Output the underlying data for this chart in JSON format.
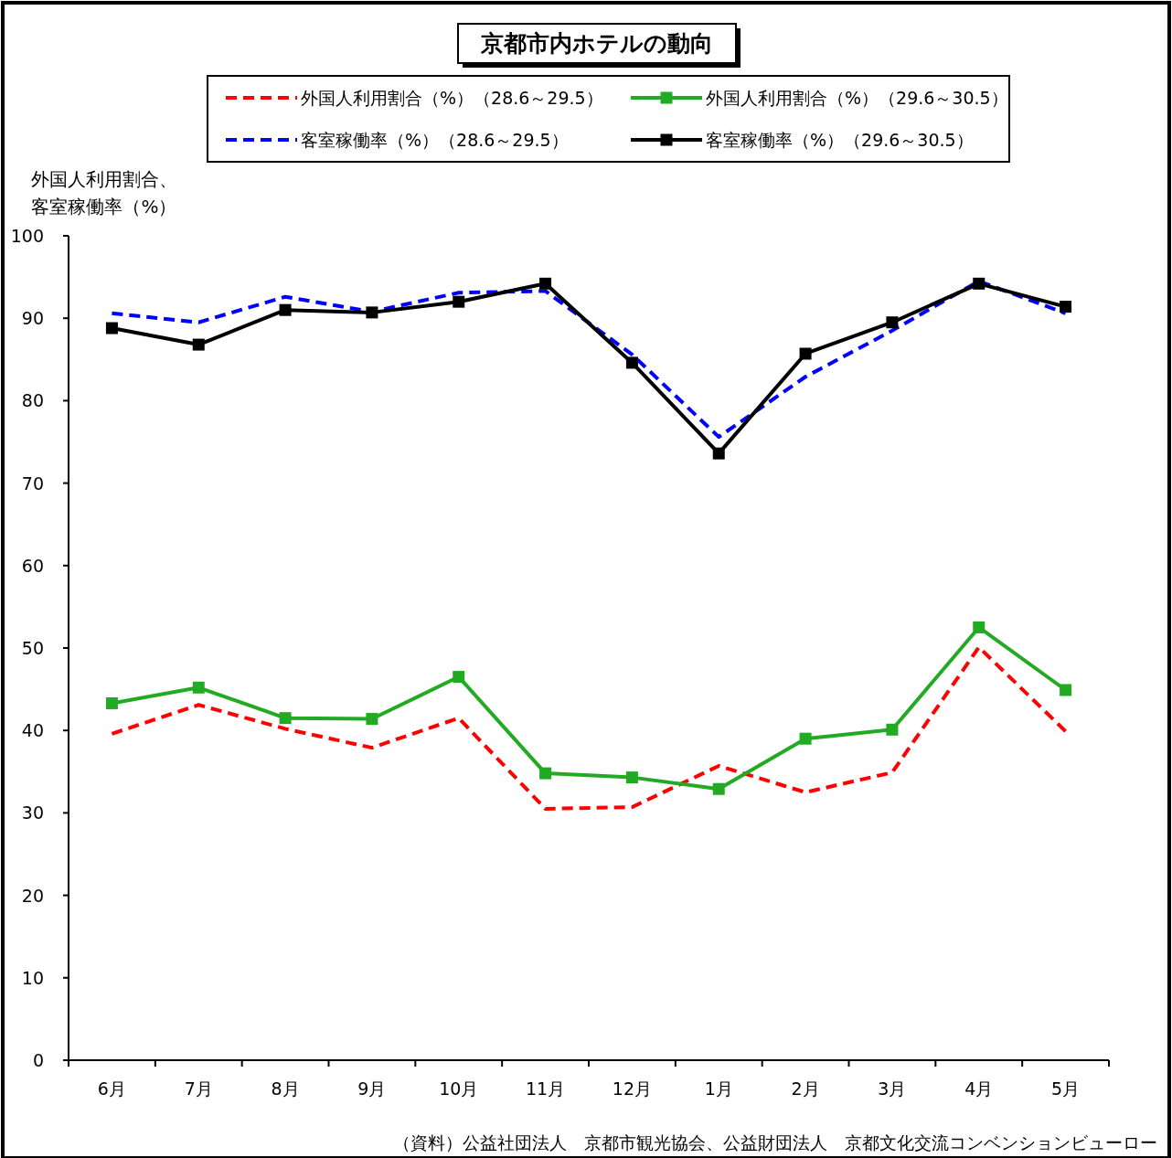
{
  "chart_data": {
    "type": "line",
    "title": "京都市内ホテルの動向",
    "ylabel": "外国人利用割合、客室稼働率（%）",
    "categories": [
      "6月",
      "7月",
      "8月",
      "9月",
      "10月",
      "11月",
      "12月",
      "1月",
      "2月",
      "3月",
      "4月",
      "5月"
    ],
    "series": [
      {
        "name": "外国人利用割合（%）（28.6～29.5）",
        "color": "#ff0000",
        "line_style": "dashed",
        "marker": "none",
        "values": [
          39.6,
          43.1,
          40.2,
          37.9,
          41.5,
          30.5,
          30.7,
          35.7,
          32.5,
          34.9,
          50.1,
          39.9
        ]
      },
      {
        "name": "外国人利用割合（%）（29.6～30.5）",
        "color": "#22aa22",
        "line_style": "solid",
        "marker": "square",
        "values": [
          43.3,
          45.2,
          41.5,
          41.4,
          46.5,
          34.8,
          34.3,
          32.9,
          39.0,
          40.1,
          52.5,
          44.9
        ]
      },
      {
        "name": "客室稼働率（%）（28.6～29.5）",
        "color": "#0000ff",
        "line_style": "dashed",
        "marker": "none",
        "values": [
          90.6,
          89.5,
          92.6,
          90.8,
          93.1,
          93.3,
          85.6,
          75.6,
          82.9,
          88.5,
          94.5,
          90.6
        ]
      },
      {
        "name": "客室稼働率（%）（29.6～30.5）",
        "color": "#000000",
        "line_style": "solid",
        "marker": "square",
        "values": [
          88.8,
          86.8,
          91.0,
          90.7,
          92.0,
          94.2,
          84.6,
          73.6,
          85.7,
          89.5,
          94.2,
          91.4
        ]
      }
    ],
    "ylim": [
      0,
      100
    ],
    "yticks": [
      0,
      10,
      20,
      30,
      40,
      50,
      60,
      70,
      80,
      90,
      100
    ],
    "grid": false,
    "legend": "top",
    "annotations": [
      "（資料）公益社団法人　京都市観光協会、公益財団法人　京都文化交流コンベンションビューロー"
    ]
  }
}
